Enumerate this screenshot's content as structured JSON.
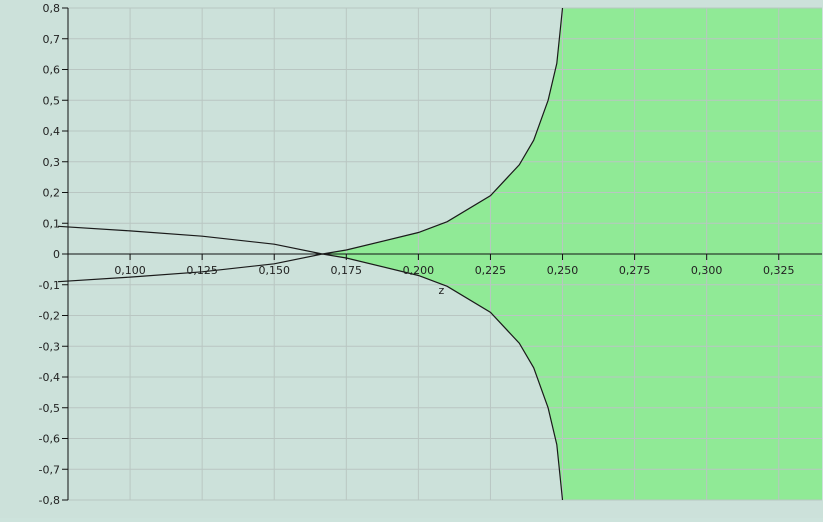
{
  "colors": {
    "background": "#cde3dc",
    "plot_background": "#cce1da",
    "grid": "#b9c6c2",
    "fill": "#90ea96",
    "curve": "#1a1a1a",
    "axis": "#111111"
  },
  "chart_data": {
    "type": "line",
    "title": "",
    "xlabel": "z",
    "ylabel": "",
    "xlim": [
      0.075,
      0.34
    ],
    "ylim": [
      -0.8,
      0.8
    ],
    "grid": true,
    "legend": "none",
    "x_ticks": [
      0.1,
      0.125,
      0.15,
      0.175,
      0.2,
      0.225,
      0.25,
      0.275,
      0.3,
      0.325
    ],
    "x_tick_labels": [
      "0,100",
      "0,125",
      "0,150",
      "0,175",
      "0,200",
      "0,225",
      "0,250",
      "0,275",
      "0,300",
      "0,325"
    ],
    "y_ticks": [
      0.8,
      0.7,
      0.6,
      0.5,
      0.4,
      0.3,
      0.2,
      0.1,
      0,
      -0.1,
      -0.2,
      -0.3,
      -0.4,
      -0.5,
      -0.6,
      -0.7,
      -0.8
    ],
    "y_tick_labels": [
      "0,8",
      "0,7",
      "0,6",
      "0,5",
      "0,4",
      "0,3",
      "0,2",
      "0,1",
      "0",
      "-0,1",
      "-0,2",
      "-0,3",
      "-0,4",
      "-0,5",
      "-0,6",
      "-0,7",
      "-0,8"
    ],
    "shaded_region": {
      "description_x_range": [
        0.1667,
        0.34
      ],
      "bounded_by": [
        "upper_curve",
        "lower_curve"
      ],
      "beyond_x": 0.25,
      "beyond_y_range": [
        -0.8,
        0.8
      ]
    },
    "series": [
      {
        "x": [
          0.075,
          0.1,
          0.125,
          0.15,
          0.1667,
          0.175,
          0.2,
          0.21,
          0.225,
          0.235,
          0.24,
          0.245,
          0.248,
          0.25
        ],
        "values": [
          0.09,
          0.075,
          0.058,
          0.032,
          0.0,
          0.013,
          0.07,
          0.105,
          0.19,
          0.29,
          0.37,
          0.5,
          0.62,
          0.8
        ]
      },
      {
        "x": [
          0.075,
          0.1,
          0.125,
          0.15,
          0.1667,
          0.175,
          0.2,
          0.21,
          0.225,
          0.235,
          0.24,
          0.245,
          0.248,
          0.25
        ],
        "values": [
          -0.09,
          -0.075,
          -0.058,
          -0.032,
          0.0,
          -0.013,
          -0.07,
          -0.105,
          -0.19,
          -0.29,
          -0.37,
          -0.5,
          -0.62,
          -0.8
        ]
      }
    ]
  }
}
